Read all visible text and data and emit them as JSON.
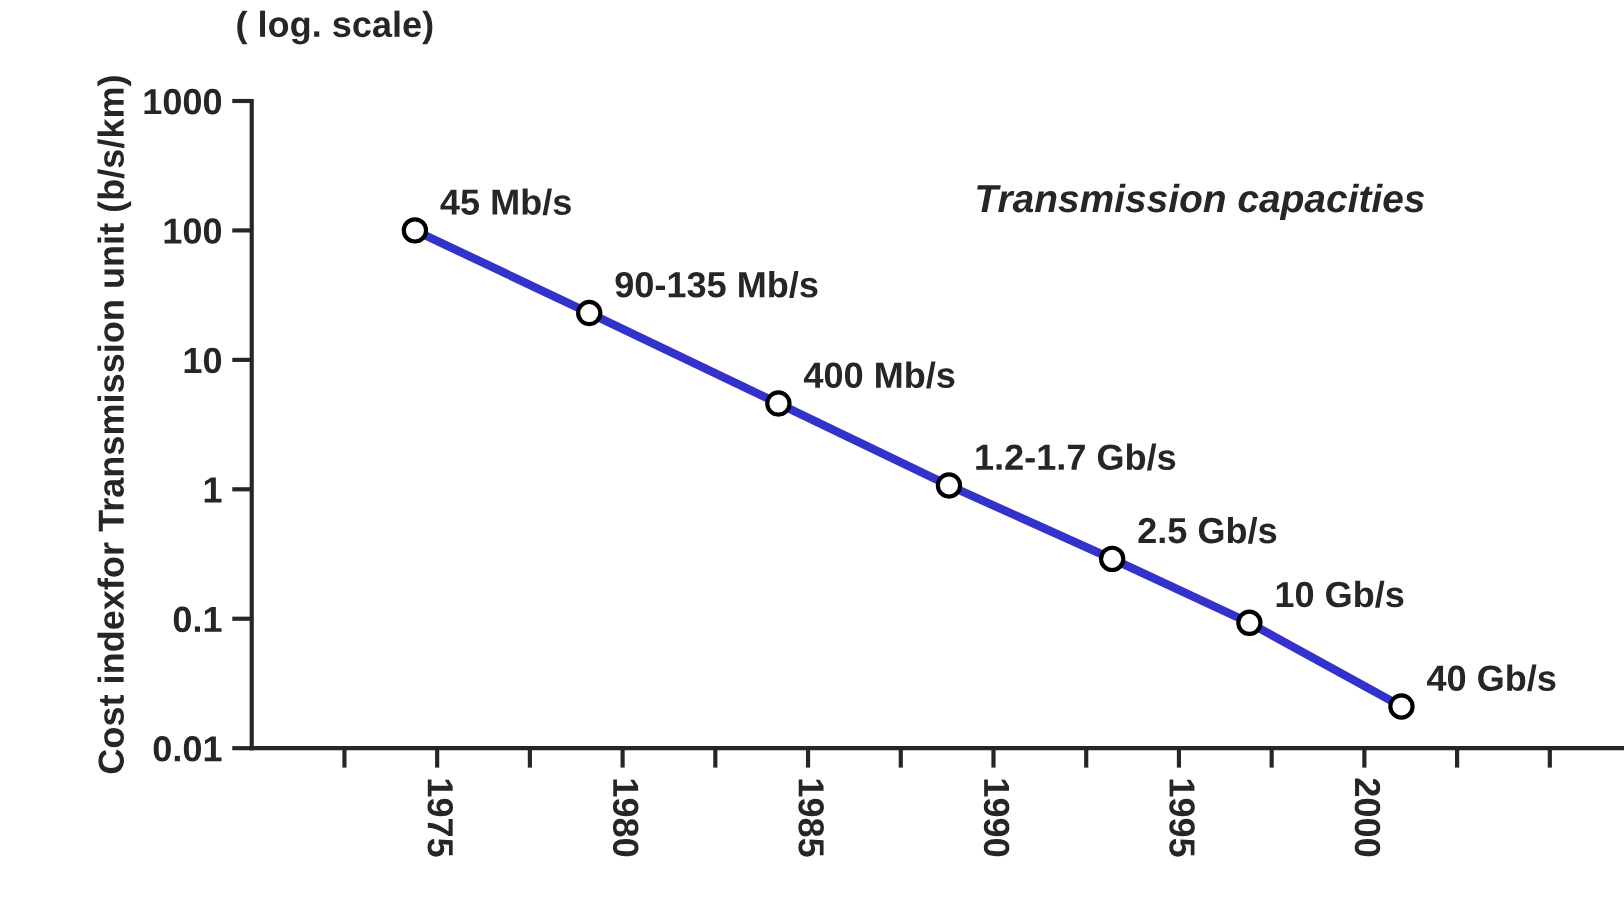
{
  "chart_data": {
    "type": "line",
    "ylabel": "Cost indexfor Transmission unit (b/s/km)",
    "x": [
      1974.4,
      1979.1,
      1984.2,
      1988.8,
      1993.2,
      1996.9,
      2001.0
    ],
    "series": [
      {
        "color": "#3333cc",
        "values": [
          100,
          23,
          4.6,
          1.07,
          0.29,
          0.093,
          0.021
        ]
      }
    ],
    "marker": "circle",
    "log": "y",
    "grid": false,
    "xlim": [
      1970,
      2007
    ],
    "xticks": [
      {
        "value": 1972.5,
        "label": null
      },
      1975,
      {
        "value": 1977.5,
        "label": null
      },
      1980,
      {
        "value": 1982.5,
        "label": null
      },
      1985,
      {
        "value": 1987.5,
        "label": null
      },
      1990,
      {
        "value": 1992.5,
        "label": null
      },
      1995,
      {
        "value": 1997.5,
        "label": null
      },
      2000,
      {
        "value": 2002.5,
        "label": null
      },
      {
        "value": 2005,
        "label": null
      }
    ],
    "ylim": [
      0.01,
      1000
    ],
    "yticks": [
      0.01,
      0.1,
      1,
      10,
      100,
      1000
    ],
    "annotations": [
      "( log. scale)",
      "Transmission capacities",
      {
        "text": "45 Mb/s",
        "x": 1974.4,
        "y": 100
      },
      {
        "text": "90-135 Mb/s",
        "x": 1979.1,
        "y": 23
      },
      {
        "text": "400 Mb/s",
        "x": 1984.2,
        "y": 4.6
      },
      {
        "text": "1.2-1.7 Gb/s",
        "x": 1988.8,
        "y": 1.07
      },
      {
        "text": "2.5 Gb/s",
        "x": 1993.2,
        "y": 0.29
      },
      {
        "text": "10 Gb/s",
        "x": 1996.9,
        "y": 0.093
      },
      {
        "text": "40 Gb/s",
        "x": 2001.0,
        "y": 0.021
      }
    ]
  }
}
